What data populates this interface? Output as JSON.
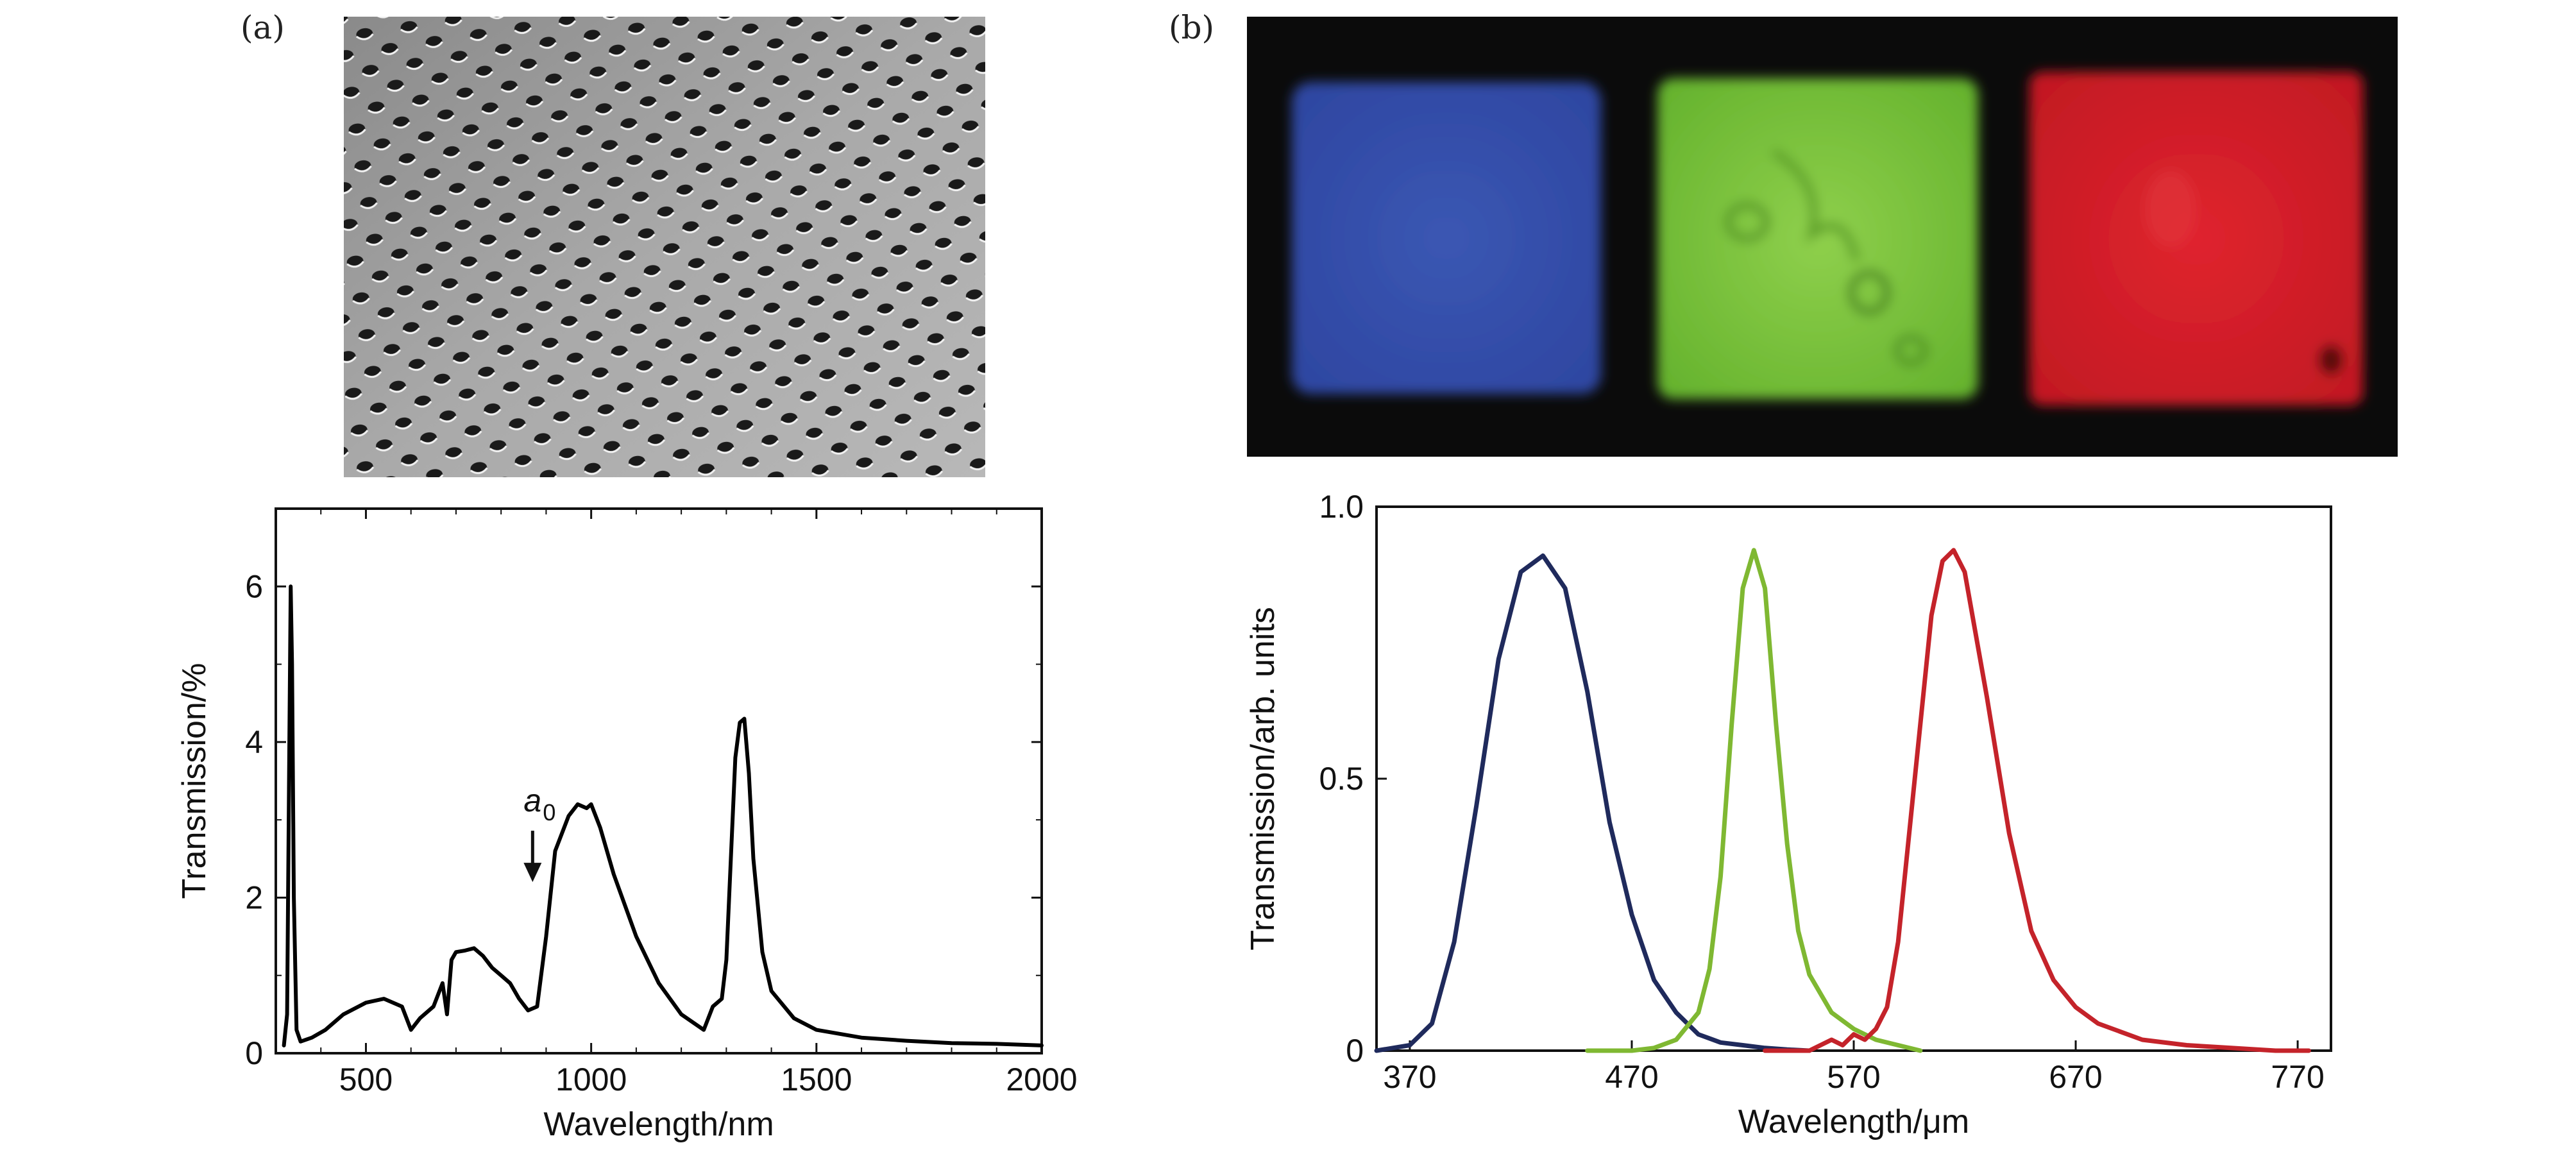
{
  "panel_a": {
    "label": "(a)",
    "image": "sem-hole-array-micrograph",
    "chart_data": {
      "type": "line",
      "xlabel": "Wavelength/nm",
      "ylabel": "Transmission/%",
      "xlim": [
        300,
        2000
      ],
      "ylim": [
        0,
        7
      ],
      "x_ticks": [
        500,
        1000,
        1500,
        2000
      ],
      "y_ticks": [
        0,
        2,
        4,
        6
      ],
      "annotation": {
        "text": "a",
        "subscript": "0",
        "x": 870,
        "y": 2.2
      },
      "grid": false,
      "series": [
        {
          "color": "#000000",
          "x": [
            318,
            325,
            330,
            333,
            336,
            340,
            346,
            355,
            380,
            410,
            450,
            500,
            540,
            580,
            600,
            620,
            650,
            670,
            680,
            690,
            700,
            720,
            740,
            760,
            780,
            800,
            820,
            840,
            860,
            880,
            900,
            920,
            950,
            970,
            990,
            1000,
            1020,
            1050,
            1100,
            1150,
            1200,
            1250,
            1270,
            1290,
            1300,
            1310,
            1320,
            1330,
            1340,
            1350,
            1360,
            1380,
            1400,
            1450,
            1500,
            1600,
            1700,
            1800,
            1900,
            2000
          ],
          "y": [
            0.1,
            0.5,
            4.0,
            6.0,
            5.0,
            2.0,
            0.3,
            0.15,
            0.2,
            0.3,
            0.5,
            0.65,
            0.7,
            0.6,
            0.3,
            0.45,
            0.6,
            0.9,
            0.5,
            1.2,
            1.3,
            1.32,
            1.35,
            1.25,
            1.1,
            1.0,
            0.9,
            0.7,
            0.55,
            0.6,
            1.5,
            2.6,
            3.05,
            3.2,
            3.15,
            3.2,
            2.9,
            2.3,
            1.5,
            0.9,
            0.5,
            0.3,
            0.6,
            0.7,
            1.2,
            2.5,
            3.8,
            4.25,
            4.3,
            3.6,
            2.5,
            1.3,
            0.8,
            0.45,
            0.3,
            0.2,
            0.16,
            0.13,
            0.12,
            0.1
          ]
        }
      ]
    }
  },
  "panel_b": {
    "label": "(b)",
    "image": "rgb-color-filter-squares-photo",
    "chart_data": {
      "type": "line",
      "xlabel": "Wavelength/μm",
      "ylabel": "Transmission/arb. units",
      "xlim": [
        355,
        785
      ],
      "ylim": [
        0,
        1.0
      ],
      "x_ticks": [
        370,
        470,
        570,
        670,
        770
      ],
      "y_ticks": [
        0,
        0.5,
        1.0
      ],
      "y_tick_labels": [
        "0",
        "0.5",
        "1.0"
      ],
      "grid": false,
      "series": [
        {
          "color": "#1f2a5c",
          "x": [
            355,
            370,
            380,
            390,
            400,
            410,
            420,
            430,
            440,
            450,
            460,
            470,
            480,
            490,
            500,
            510,
            520,
            530,
            540,
            550
          ],
          "y": [
            0.0,
            0.01,
            0.05,
            0.2,
            0.45,
            0.72,
            0.88,
            0.91,
            0.85,
            0.66,
            0.42,
            0.25,
            0.13,
            0.07,
            0.03,
            0.015,
            0.01,
            0.005,
            0.002,
            0.0
          ]
        },
        {
          "color": "#7fb832",
          "x": [
            450,
            470,
            480,
            490,
            500,
            505,
            510,
            515,
            520,
            525,
            530,
            535,
            540,
            545,
            550,
            560,
            570,
            580,
            590,
            600
          ],
          "y": [
            0.0,
            0.0,
            0.005,
            0.02,
            0.07,
            0.15,
            0.32,
            0.6,
            0.85,
            0.92,
            0.85,
            0.6,
            0.38,
            0.22,
            0.14,
            0.07,
            0.04,
            0.02,
            0.01,
            0.0
          ]
        },
        {
          "color": "#c4232a",
          "x": [
            530,
            550,
            560,
            565,
            570,
            575,
            580,
            585,
            590,
            600,
            605,
            610,
            615,
            620,
            630,
            640,
            650,
            660,
            670,
            680,
            700,
            720,
            740,
            760,
            775
          ],
          "y": [
            0.0,
            0.0,
            0.02,
            0.01,
            0.03,
            0.02,
            0.04,
            0.08,
            0.2,
            0.6,
            0.8,
            0.9,
            0.92,
            0.88,
            0.65,
            0.4,
            0.22,
            0.13,
            0.08,
            0.05,
            0.02,
            0.01,
            0.005,
            0.0,
            0.0
          ]
        }
      ]
    }
  }
}
